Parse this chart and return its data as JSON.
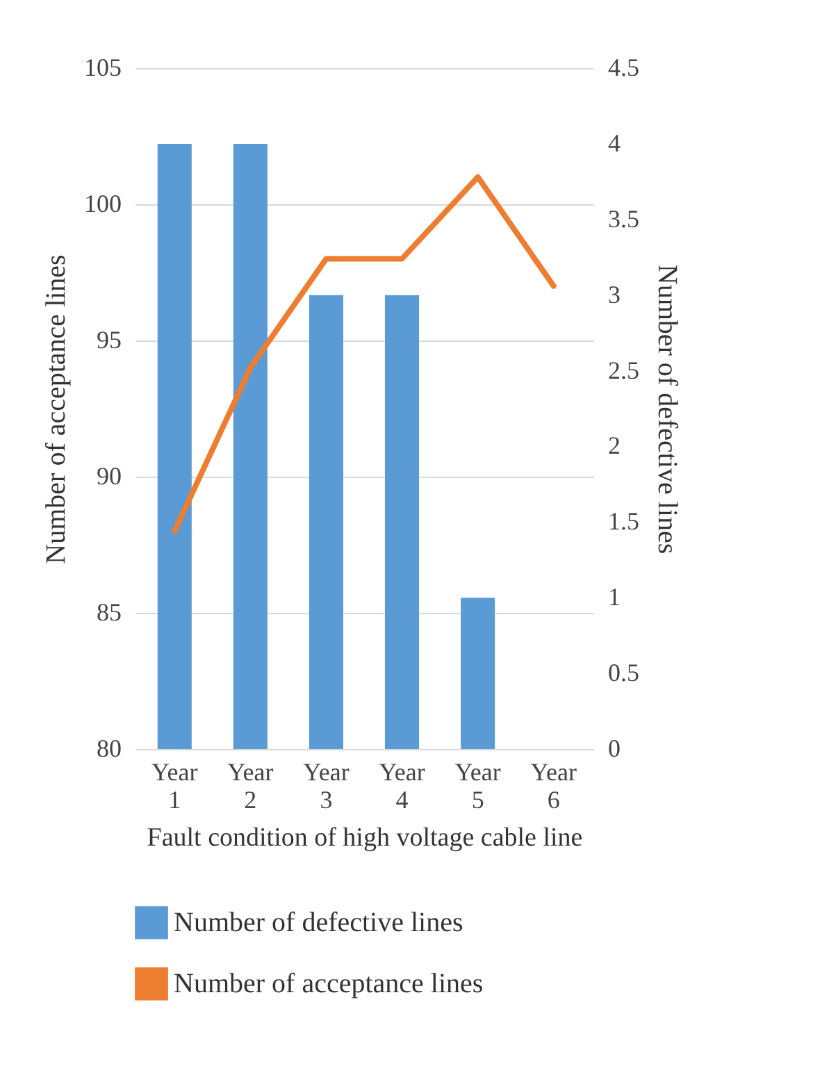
{
  "chart_data": {
    "type": "bar",
    "xlabel": "Fault condition of high voltage cable line",
    "ylabel": "Number of acceptance lines",
    "y2label": "Number of defective lines",
    "categories": [
      "Year 1",
      "Year 2",
      "Year 3",
      "Year 4",
      "Year 5",
      "Year 6"
    ],
    "series": [
      {
        "name": "Number of defective lines",
        "axis": "y2",
        "color": "#5b9bd5",
        "values": [
          4,
          4,
          3,
          3,
          1,
          0
        ]
      },
      {
        "name": "Number of acceptance lines",
        "type": "line",
        "color": "#ed7d31",
        "values": [
          88,
          94,
          98,
          98,
          101,
          97
        ]
      }
    ],
    "ylim": [
      80,
      105
    ],
    "yticks": [
      80,
      85,
      90,
      95,
      100,
      105
    ],
    "y2lim": [
      0,
      4.5
    ],
    "y2ticks": [
      0,
      0.5,
      1,
      1.5,
      2,
      2.5,
      3,
      3.5,
      4,
      4.5
    ],
    "grid": "y",
    "legend": "bottom"
  }
}
